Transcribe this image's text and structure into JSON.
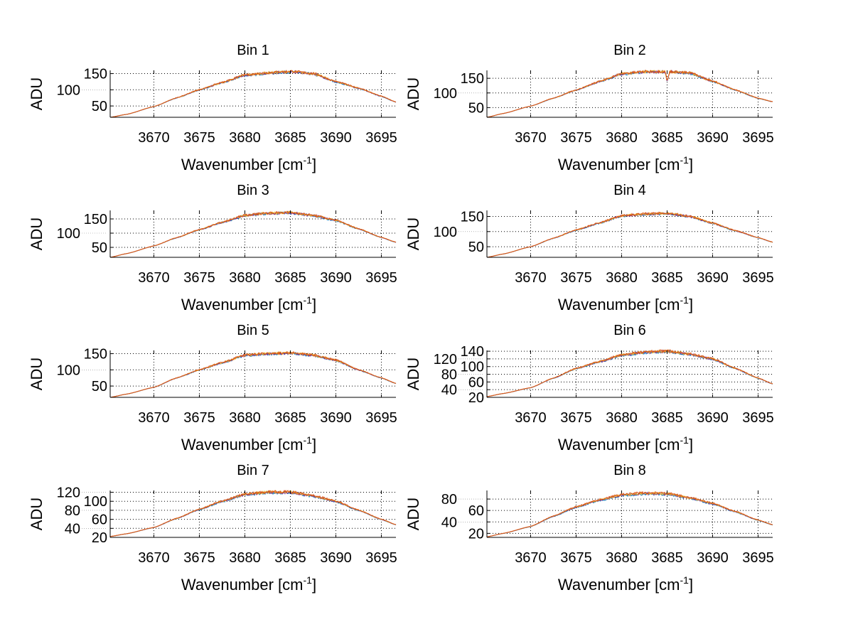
{
  "chart_data": [
    {
      "type": "line",
      "title": "Bin 1",
      "xlabel": "Wavenumber [cm",
      "xlabel_sup": "-1",
      "xlabel_end": "]",
      "ylabel": "ADU",
      "xlim": [
        3665.2,
        3696.6
      ],
      "ylim": [
        15,
        160
      ],
      "xticks": [
        3670,
        3675,
        3680,
        3685,
        3690,
        3695
      ],
      "yticks": [
        50,
        100,
        150
      ],
      "grid": true,
      "x": [
        3665.2,
        3667,
        3670,
        3672.5,
        3675,
        3677.5,
        3680,
        3682.5,
        3685,
        3687.5,
        3690,
        3692.5,
        3695,
        3696.6
      ],
      "y": [
        15,
        24,
        48,
        75,
        100,
        122,
        145,
        152,
        156,
        150,
        125,
        105,
        80,
        62
      ]
    },
    {
      "type": "line",
      "title": "Bin 2",
      "xlabel": "Wavenumber [cm",
      "xlabel_sup": "-1",
      "xlabel_end": "]",
      "ylabel": "ADU",
      "xlim": [
        3665.2,
        3696.6
      ],
      "ylim": [
        17,
        177
      ],
      "xticks": [
        3670,
        3675,
        3680,
        3685,
        3690,
        3695
      ],
      "yticks": [
        50,
        100,
        150
      ],
      "grid": true,
      "x": [
        3665.2,
        3667,
        3670,
        3672.5,
        3675,
        3677.5,
        3680,
        3682.5,
        3684.8,
        3685,
        3685.3,
        3687.5,
        3690,
        3692.5,
        3695,
        3696.6
      ],
      "y": [
        17,
        30,
        55,
        82,
        110,
        138,
        165,
        172,
        172,
        140,
        172,
        168,
        140,
        110,
        82,
        70
      ]
    },
    {
      "type": "line",
      "title": "Bin 3",
      "xlabel": "Wavenumber [cm",
      "xlabel_sup": "-1",
      "xlabel_end": "]",
      "ylabel": "ADU",
      "xlim": [
        3665.2,
        3696.6
      ],
      "ylim": [
        15,
        180
      ],
      "xticks": [
        3670,
        3675,
        3680,
        3685,
        3690,
        3695
      ],
      "yticks": [
        50,
        100,
        150
      ],
      "grid": true,
      "x": [
        3665.2,
        3667,
        3670,
        3672.5,
        3675,
        3677.5,
        3680,
        3682.5,
        3685,
        3687.5,
        3690,
        3692.5,
        3695,
        3696.6
      ],
      "y": [
        15,
        28,
        55,
        84,
        112,
        138,
        162,
        170,
        172,
        162,
        145,
        115,
        85,
        68
      ]
    },
    {
      "type": "line",
      "title": "Bin 4",
      "xlabel": "Wavenumber [cm",
      "xlabel_sup": "-1",
      "xlabel_end": "]",
      "ylabel": "ADU",
      "xlim": [
        3665.2,
        3696.6
      ],
      "ylim": [
        15,
        170
      ],
      "xticks": [
        3670,
        3675,
        3680,
        3685,
        3690,
        3695
      ],
      "yticks": [
        50,
        100,
        150
      ],
      "grid": true,
      "x": [
        3665.2,
        3667,
        3670,
        3672.5,
        3675,
        3677.5,
        3680,
        3682.5,
        3685,
        3687.5,
        3690,
        3692.5,
        3695,
        3696.6
      ],
      "y": [
        15,
        26,
        50,
        78,
        105,
        128,
        152,
        158,
        160,
        150,
        128,
        103,
        80,
        65
      ]
    },
    {
      "type": "line",
      "title": "Bin 5",
      "xlabel": "Wavenumber [cm",
      "xlabel_sup": "-1",
      "xlabel_end": "]",
      "ylabel": "ADU",
      "xlim": [
        3665.2,
        3696.6
      ],
      "ylim": [
        15,
        160
      ],
      "xticks": [
        3670,
        3675,
        3680,
        3685,
        3690,
        3695
      ],
      "yticks": [
        50,
        100,
        150
      ],
      "grid": true,
      "x": [
        3665.2,
        3667,
        3670,
        3672.5,
        3675,
        3677.5,
        3680,
        3682.5,
        3685,
        3687.5,
        3690,
        3692.5,
        3695,
        3696.6
      ],
      "y": [
        15,
        25,
        46,
        75,
        100,
        122,
        145,
        150,
        152,
        145,
        130,
        100,
        75,
        58
      ]
    },
    {
      "type": "line",
      "title": "Bin 6",
      "xlabel": "Wavenumber [cm",
      "xlabel_sup": "-1",
      "xlabel_end": "]",
      "ylabel": "ADU",
      "xlim": [
        3665.2,
        3696.6
      ],
      "ylim": [
        20,
        142
      ],
      "xticks": [
        3670,
        3675,
        3680,
        3685,
        3690,
        3695
      ],
      "yticks": [
        20,
        40,
        60,
        80,
        100,
        120,
        140
      ],
      "grid": true,
      "x": [
        3665.2,
        3667,
        3670,
        3672.5,
        3675,
        3677.5,
        3680,
        3682.5,
        3685,
        3687.5,
        3690,
        3692.5,
        3695,
        3696.6
      ],
      "y": [
        22,
        30,
        45,
        70,
        95,
        112,
        130,
        137,
        140,
        132,
        120,
        95,
        70,
        55
      ]
    },
    {
      "type": "line",
      "title": "Bin 7",
      "xlabel": "Wavenumber [cm",
      "xlabel_sup": "-1",
      "xlabel_end": "]",
      "ylabel": "ADU",
      "xlim": [
        3665.2,
        3696.6
      ],
      "ylim": [
        20,
        124
      ],
      "xticks": [
        3670,
        3675,
        3680,
        3685,
        3690,
        3695
      ],
      "yticks": [
        20,
        40,
        60,
        80,
        100,
        120
      ],
      "grid": true,
      "x": [
        3665.2,
        3667,
        3670,
        3672.5,
        3675,
        3677.5,
        3680,
        3682.5,
        3685,
        3687.5,
        3690,
        3692.5,
        3695,
        3696.6
      ],
      "y": [
        22,
        28,
        42,
        62,
        82,
        100,
        115,
        120,
        120,
        112,
        100,
        80,
        60,
        48
      ]
    },
    {
      "type": "line",
      "title": "Bin 8",
      "xlabel": "Wavenumber [cm",
      "xlabel_sup": "-1",
      "xlabel_end": "]",
      "ylabel": "ADU",
      "xlim": [
        3665.2,
        3696.6
      ],
      "ylim": [
        13,
        95
      ],
      "xticks": [
        3670,
        3675,
        3680,
        3685,
        3690,
        3695
      ],
      "yticks": [
        20,
        40,
        60,
        80
      ],
      "grid": true,
      "x": [
        3665.2,
        3667,
        3670,
        3672.5,
        3675,
        3677.5,
        3680,
        3682.5,
        3685,
        3687.5,
        3690,
        3692.5,
        3695,
        3696.6
      ],
      "y": [
        14,
        20,
        32,
        50,
        66,
        78,
        87,
        90,
        89,
        82,
        72,
        58,
        43,
        35
      ]
    }
  ],
  "series_colors": [
    "#0072BD",
    "#7E2F8E",
    "#EDB120",
    "#D95319"
  ]
}
